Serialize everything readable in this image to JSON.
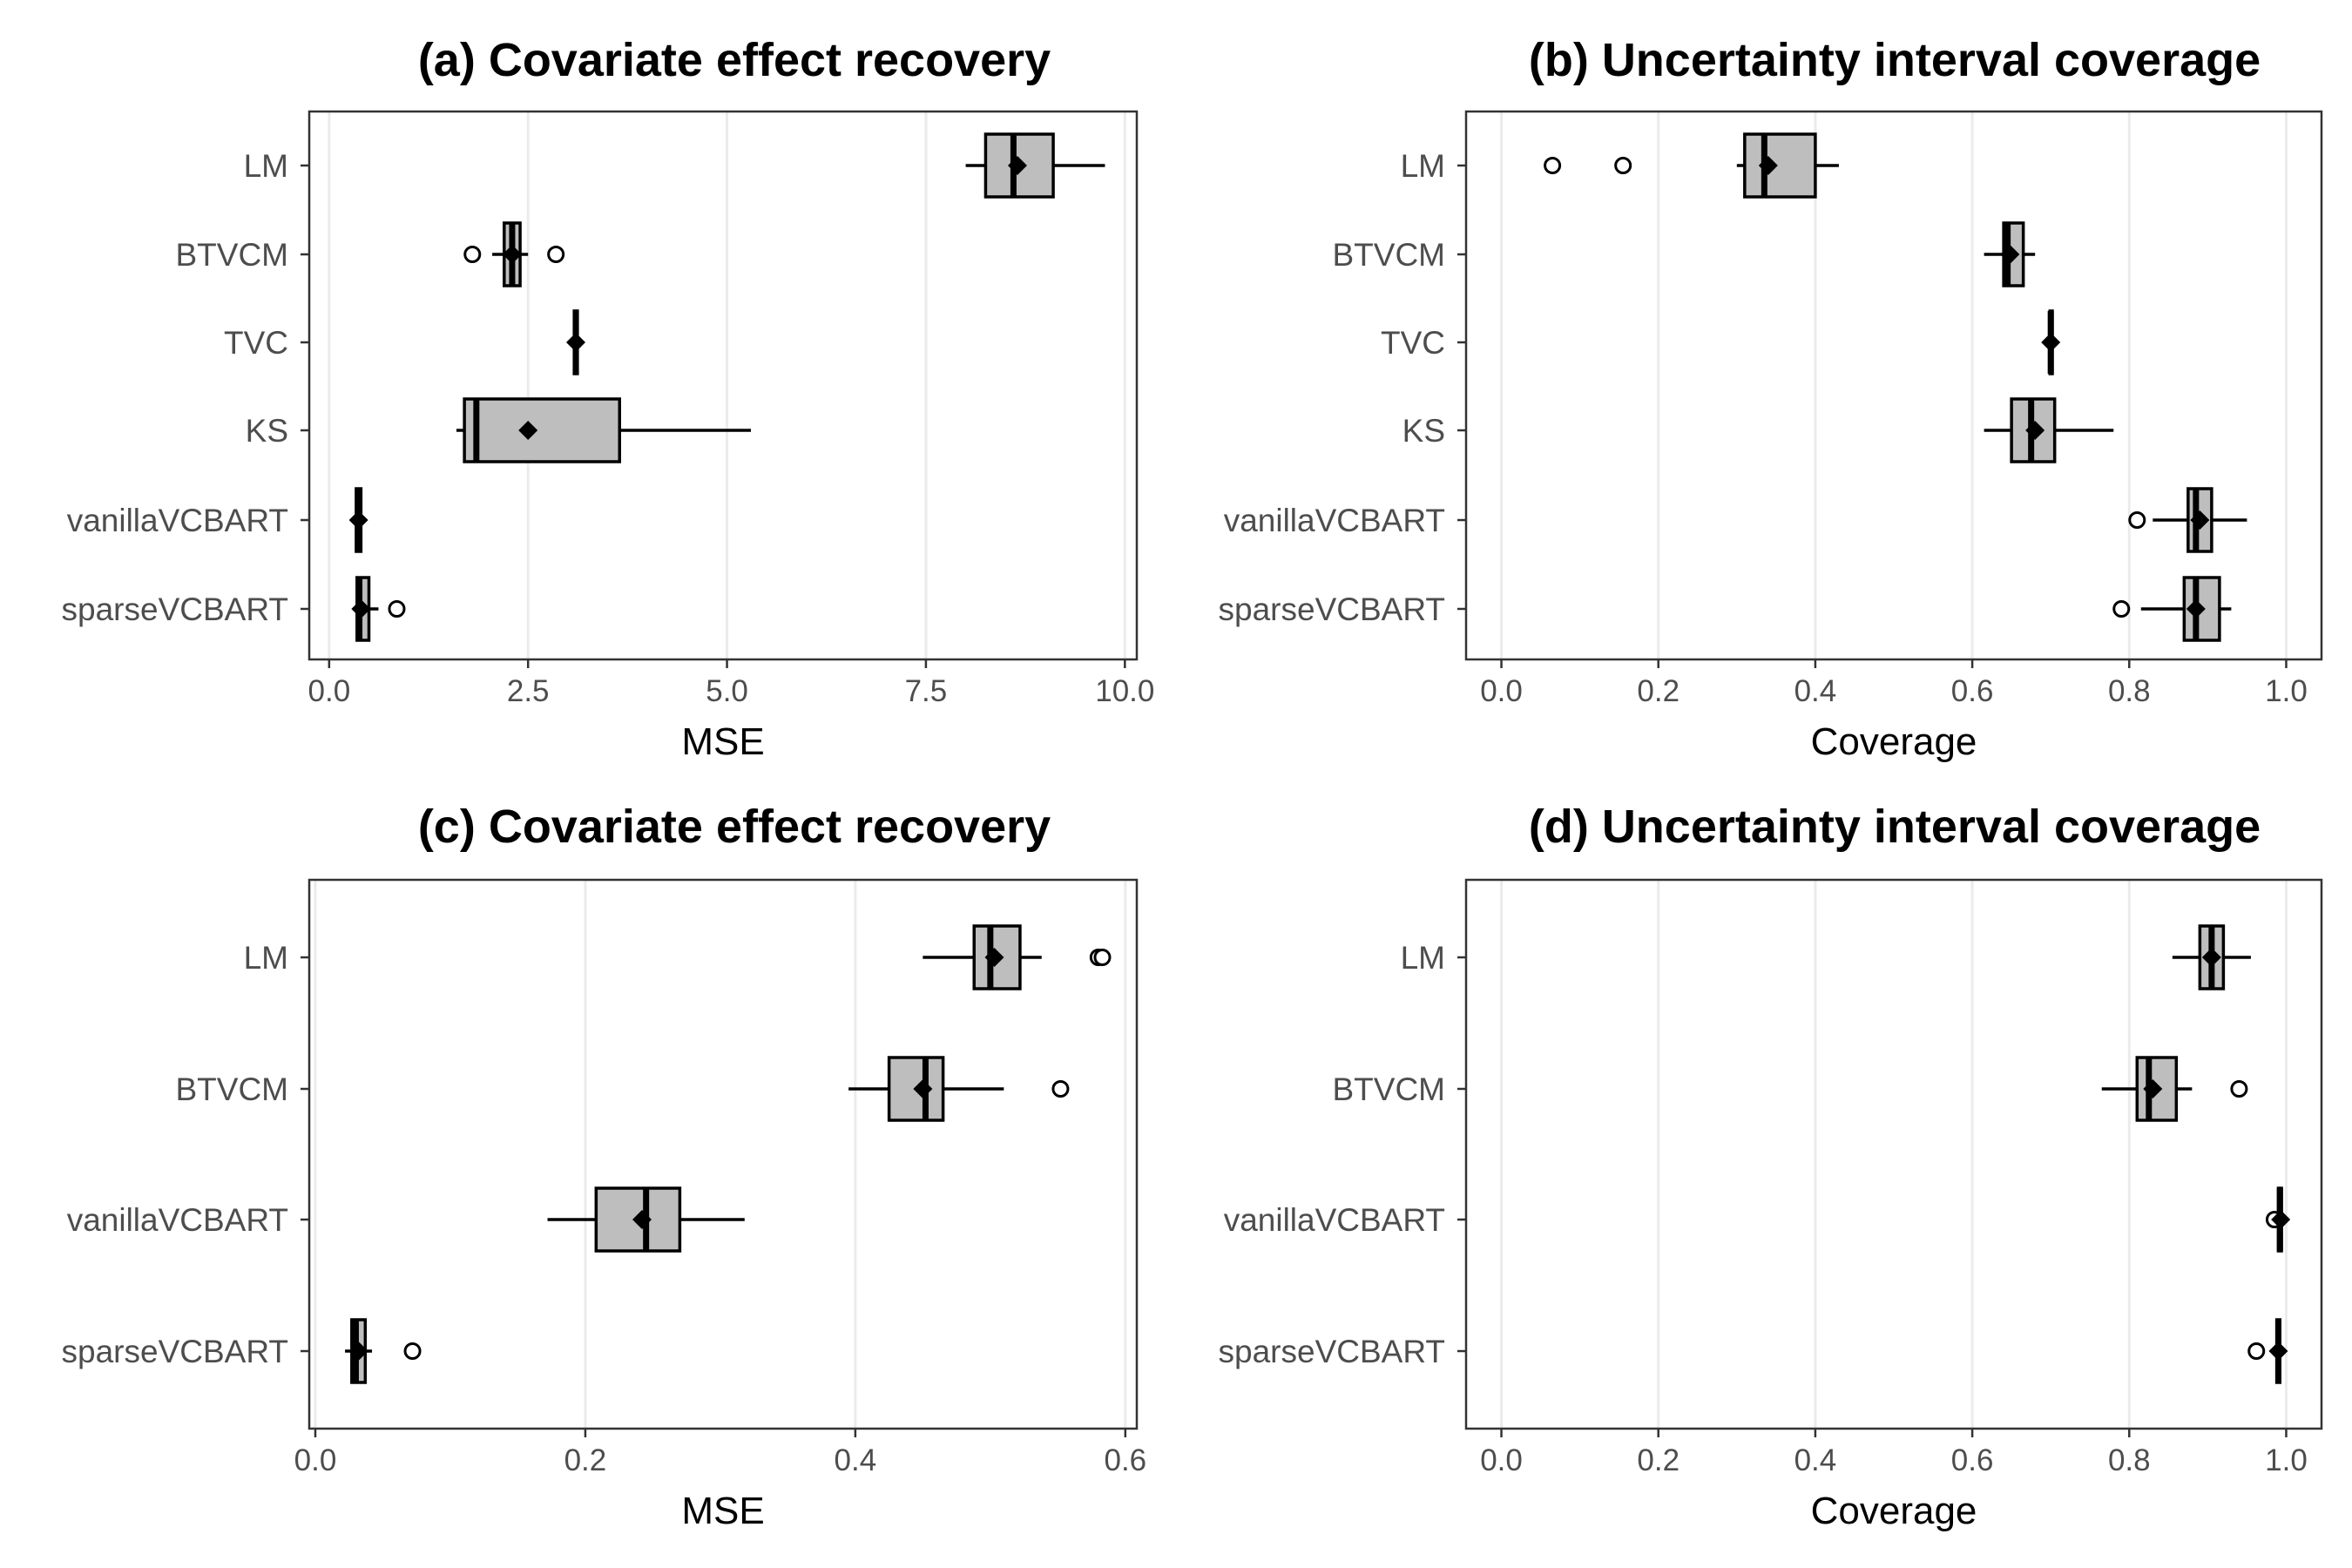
{
  "chart_data": [
    {
      "type": "boxplot",
      "title": "(a) Covariate effect recovery",
      "xlabel": "MSE",
      "xlim": [
        -0.25,
        10.15
      ],
      "ticks": [
        0.0,
        2.5,
        5.0,
        7.5,
        10.0
      ],
      "tick_labels": [
        "0.0",
        "2.5",
        "5.0",
        "7.5",
        "10.0"
      ],
      "categories": [
        "LM",
        "BTVCM",
        "TVC",
        "KS",
        "vanillaVCBART",
        "sparseVCBART"
      ],
      "boxes": [
        {
          "category": "LM",
          "whisker_low": 8.0,
          "q1": 8.25,
          "median": 8.6,
          "q3": 9.1,
          "whisker_high": 9.75,
          "mean": 8.65,
          "outliers": []
        },
        {
          "category": "BTVCM",
          "whisker_low": 2.05,
          "q1": 2.2,
          "median": 2.3,
          "q3": 2.4,
          "whisker_high": 2.5,
          "mean": 2.3,
          "outliers": [
            1.8,
            2.85
          ]
        },
        {
          "category": "TVC",
          "whisker_low": 3.05,
          "q1": 3.08,
          "median": 3.1,
          "q3": 3.12,
          "whisker_high": 3.15,
          "mean": 3.1,
          "outliers": []
        },
        {
          "category": "KS",
          "whisker_low": 1.6,
          "q1": 1.7,
          "median": 1.85,
          "q3": 3.65,
          "whisker_high": 5.3,
          "mean": 2.5,
          "outliers": []
        },
        {
          "category": "vanillaVCBART",
          "whisker_low": 0.3,
          "q1": 0.34,
          "median": 0.37,
          "q3": 0.4,
          "whisker_high": 0.43,
          "mean": 0.37,
          "outliers": []
        },
        {
          "category": "sparseVCBART",
          "whisker_low": 0.3,
          "q1": 0.35,
          "median": 0.38,
          "q3": 0.5,
          "whisker_high": 0.62,
          "mean": 0.4,
          "outliers": [
            0.85
          ]
        }
      ]
    },
    {
      "type": "boxplot",
      "title": "(b) Uncertainty interval coverage",
      "xlabel": "Coverage",
      "xlim": [
        -0.045,
        1.045
      ],
      "ticks": [
        0.0,
        0.2,
        0.4,
        0.6,
        0.8,
        1.0
      ],
      "tick_labels": [
        "0.0",
        "0.2",
        "0.4",
        "0.6",
        "0.8",
        "1.0"
      ],
      "categories": [
        "LM",
        "BTVCM",
        "TVC",
        "KS",
        "vanillaVCBART",
        "sparseVCBART"
      ],
      "boxes": [
        {
          "category": "LM",
          "whisker_low": 0.3,
          "q1": 0.31,
          "median": 0.335,
          "q3": 0.4,
          "whisker_high": 0.43,
          "mean": 0.34,
          "outliers": [
            0.065,
            0.155
          ]
        },
        {
          "category": "BTVCM",
          "whisker_low": 0.615,
          "q1": 0.64,
          "median": 0.645,
          "q3": 0.665,
          "whisker_high": 0.68,
          "mean": 0.648,
          "outliers": []
        },
        {
          "category": "TVC",
          "whisker_low": 0.697,
          "q1": 0.699,
          "median": 0.7,
          "q3": 0.702,
          "whisker_high": 0.704,
          "mean": 0.7,
          "outliers": []
        },
        {
          "category": "KS",
          "whisker_low": 0.615,
          "q1": 0.65,
          "median": 0.675,
          "q3": 0.705,
          "whisker_high": 0.78,
          "mean": 0.68,
          "outliers": []
        },
        {
          "category": "vanillaVCBART",
          "whisker_low": 0.83,
          "q1": 0.875,
          "median": 0.885,
          "q3": 0.905,
          "whisker_high": 0.95,
          "mean": 0.89,
          "outliers": [
            0.81
          ]
        },
        {
          "category": "sparseVCBART",
          "whisker_low": 0.815,
          "q1": 0.87,
          "median": 0.885,
          "q3": 0.915,
          "whisker_high": 0.93,
          "mean": 0.885,
          "outliers": [
            0.79
          ]
        }
      ]
    },
    {
      "type": "boxplot",
      "title": "(c) Covariate effect recovery",
      "xlabel": "MSE",
      "xlim": [
        -0.0045,
        0.6085
      ],
      "ticks": [
        0.0,
        0.2,
        0.4,
        0.6
      ],
      "tick_labels": [
        "0.0",
        "0.2",
        "0.4",
        "0.6"
      ],
      "categories": [
        "LM",
        "BTVCM",
        "vanillaVCBART",
        "sparseVCBART"
      ],
      "boxes": [
        {
          "category": "LM",
          "whisker_low": 0.45,
          "q1": 0.488,
          "median": 0.5,
          "q3": 0.522,
          "whisker_high": 0.538,
          "mean": 0.503,
          "outliers": [
            0.58,
            0.583
          ]
        },
        {
          "category": "BTVCM",
          "whisker_low": 0.395,
          "q1": 0.425,
          "median": 0.452,
          "q3": 0.465,
          "whisker_high": 0.51,
          "mean": 0.45,
          "outliers": [
            0.552
          ]
        },
        {
          "category": "vanillaVCBART",
          "whisker_low": 0.172,
          "q1": 0.208,
          "median": 0.245,
          "q3": 0.27,
          "whisker_high": 0.318,
          "mean": 0.242,
          "outliers": []
        },
        {
          "category": "sparseVCBART",
          "whisker_low": 0.022,
          "q1": 0.027,
          "median": 0.03,
          "q3": 0.037,
          "whisker_high": 0.042,
          "mean": 0.032,
          "outliers": [
            0.072
          ]
        }
      ]
    },
    {
      "type": "boxplot",
      "title": "(d) Uncertainty interval coverage",
      "xlabel": "Coverage",
      "xlim": [
        -0.045,
        1.045
      ],
      "ticks": [
        0.0,
        0.2,
        0.4,
        0.6,
        0.8,
        1.0
      ],
      "tick_labels": [
        "0.0",
        "0.2",
        "0.4",
        "0.6",
        "0.8",
        "1.0"
      ],
      "categories": [
        "LM",
        "BTVCM",
        "vanillaVCBART",
        "sparseVCBART"
      ],
      "boxes": [
        {
          "category": "LM",
          "whisker_low": 0.855,
          "q1": 0.89,
          "median": 0.905,
          "q3": 0.92,
          "whisker_high": 0.955,
          "mean": 0.905,
          "outliers": []
        },
        {
          "category": "BTVCM",
          "whisker_low": 0.765,
          "q1": 0.81,
          "median": 0.825,
          "q3": 0.86,
          "whisker_high": 0.88,
          "mean": 0.83,
          "outliers": [
            0.94
          ]
        },
        {
          "category": "vanillaVCBART",
          "whisker_low": 0.988,
          "q1": 0.99,
          "median": 0.992,
          "q3": 0.994,
          "whisker_high": 0.996,
          "mean": 0.993,
          "outliers": [
            0.985
          ]
        },
        {
          "category": "sparseVCBART",
          "whisker_low": 0.986,
          "q1": 0.988,
          "median": 0.99,
          "q3": 0.992,
          "whisker_high": 0.994,
          "mean": 0.99,
          "outliers": [
            0.962
          ]
        }
      ]
    }
  ]
}
